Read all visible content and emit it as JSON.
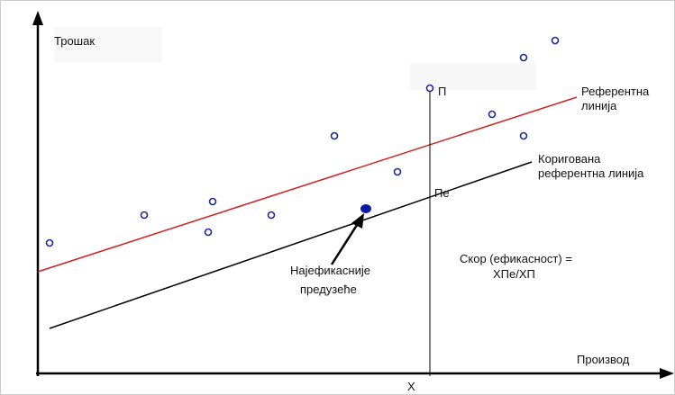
{
  "axes": {
    "y_label": "Трошак",
    "x_label": "Производ",
    "x_point": "X"
  },
  "points": {
    "top": "П",
    "efficient": "Пе"
  },
  "lines": {
    "reference": [
      "Референтна",
      "линија"
    ],
    "corrected": [
      "Коригована",
      "референтна линија"
    ]
  },
  "annotations": {
    "efficient_firm": [
      "Најефикасније",
      "предузеће"
    ],
    "score": [
      "Скор (ефикасност) =",
      "XПе/XП"
    ]
  }
}
